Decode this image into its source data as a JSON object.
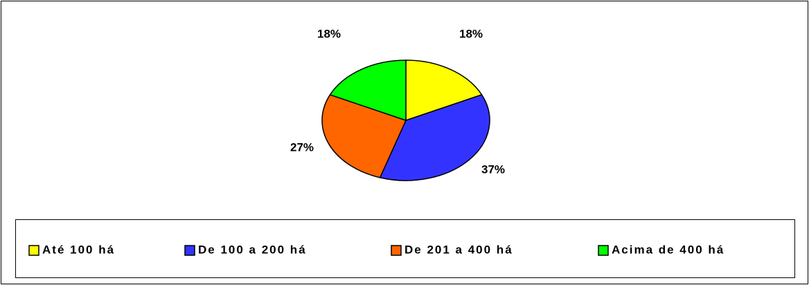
{
  "chart_data": {
    "type": "pie",
    "categories": [
      "Até 100 há",
      "De 100 a 200 há",
      "De 201 a 400 há",
      "Acima de 400 há"
    ],
    "values": [
      18,
      37,
      27,
      18
    ],
    "value_labels": [
      "18%",
      "37%",
      "27%",
      "18%"
    ],
    "colors": [
      "#ffff00",
      "#3333ff",
      "#ff6600",
      "#00ff00"
    ],
    "legend": "bottom"
  }
}
